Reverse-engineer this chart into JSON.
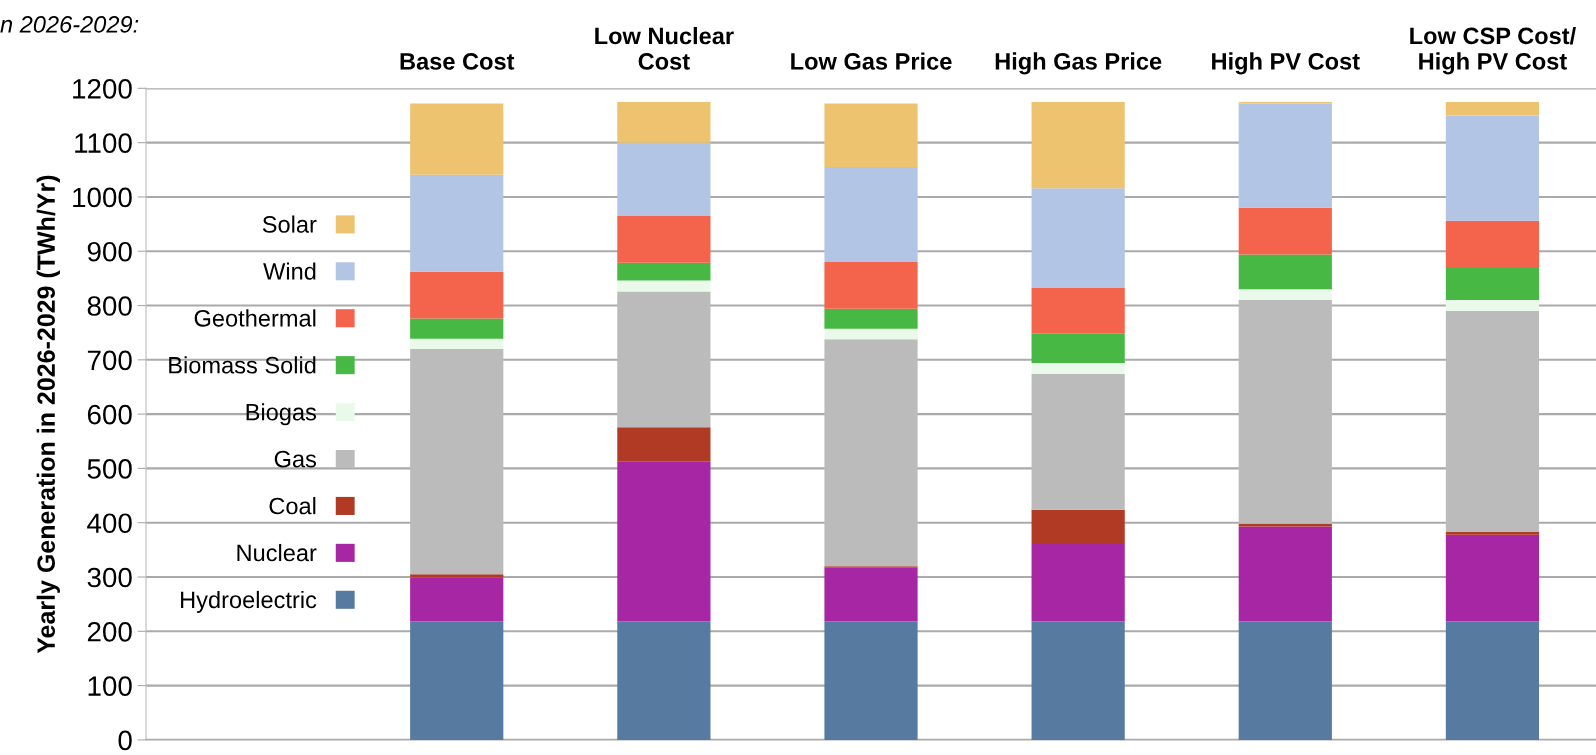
{
  "chart_data": {
    "type": "bar",
    "stacked": true,
    "ylabel": "Yearly Generation in 2026-2029 (TWh/Yr)",
    "annotations": [
      "n 2026-2029:"
    ],
    "categories": [
      null,
      "Base Cost",
      "Low Nuclear\nCost",
      "Low Gas Price",
      "High Gas Price",
      "High PV Cost",
      "Low CSP Cost/\nHigh PV Cost"
    ],
    "series": [
      {
        "name": "Hydroelectric",
        "color": "#577ba0",
        "values": [
          null,
          218,
          218,
          218,
          218,
          218,
          218
        ]
      },
      {
        "name": "Nuclear",
        "color": "#a626a4",
        "values": [
          null,
          81,
          295,
          99,
          143,
          175,
          160
        ]
      },
      {
        "name": "Coal",
        "color": "#b03a24",
        "values": [
          null,
          6,
          63,
          3,
          63,
          5,
          5
        ]
      },
      {
        "name": "Gas",
        "color": "#bbbbbb",
        "values": [
          null,
          415,
          250,
          418,
          250,
          412,
          407
        ]
      },
      {
        "name": "Biogas",
        "color": "#eafaea",
        "values": [
          null,
          19,
          20,
          19,
          20,
          20,
          20
        ]
      },
      {
        "name": "Biomass Solid",
        "color": "#46b843",
        "values": [
          null,
          37,
          33,
          37,
          54,
          64,
          59
        ]
      },
      {
        "name": "Geothermal",
        "color": "#f4644d",
        "values": [
          null,
          86,
          86,
          86,
          85,
          86,
          87
        ]
      },
      {
        "name": "Wind",
        "color": "#b2c5e5",
        "values": [
          null,
          179,
          135,
          175,
          183,
          192,
          194
        ]
      },
      {
        "name": "Solar",
        "color": "#eec370",
        "values": [
          null,
          131,
          75,
          117,
          159,
          3,
          25
        ]
      }
    ],
    "ylim": [
      0,
      1200
    ],
    "yticks": [
      0,
      100,
      200,
      300,
      400,
      500,
      600,
      700,
      800,
      900,
      1000,
      1100,
      1200
    ],
    "grid": "y",
    "legend": "left"
  }
}
